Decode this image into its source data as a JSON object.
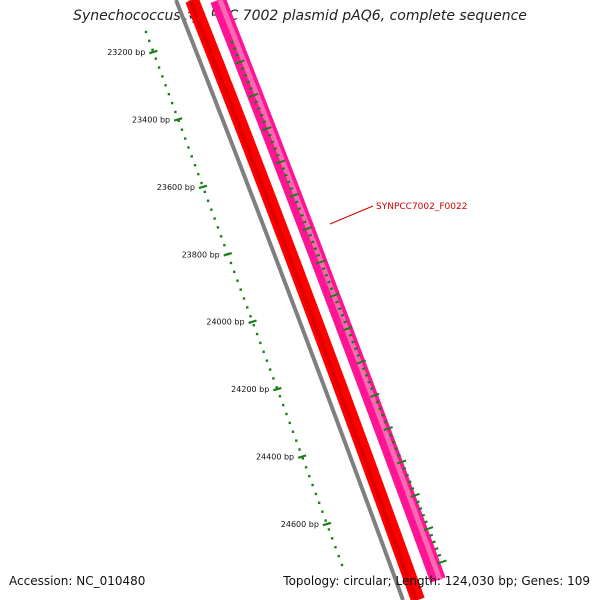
{
  "title": "Synechococcus sp. PCC 7002 plasmid pAQ6, complete sequence",
  "accession": "Accession: NC_010480",
  "summary": "Topology: circular; Length: 124,030 bp; Genes: 109",
  "ticks": [
    {
      "label": "23200 bp",
      "bp": 23200
    },
    {
      "label": "23400 bp",
      "bp": 23400
    },
    {
      "label": "23600 bp",
      "bp": 23600
    },
    {
      "label": "23800 bp",
      "bp": 23800
    },
    {
      "label": "24000 bp",
      "bp": 24000
    },
    {
      "label": "24200 bp",
      "bp": 24200
    },
    {
      "label": "24400 bp",
      "bp": 24400
    },
    {
      "label": "24600 bp",
      "bp": 24600
    }
  ],
  "gene_label": "SYNPCC7002_F0022",
  "colors": {
    "backbone": "#7f7f7f",
    "cds_red": "#ff0000",
    "cds_pink": "#ff1493",
    "tick_green": "#1a7f1a",
    "label_red": "#cc0000"
  }
}
